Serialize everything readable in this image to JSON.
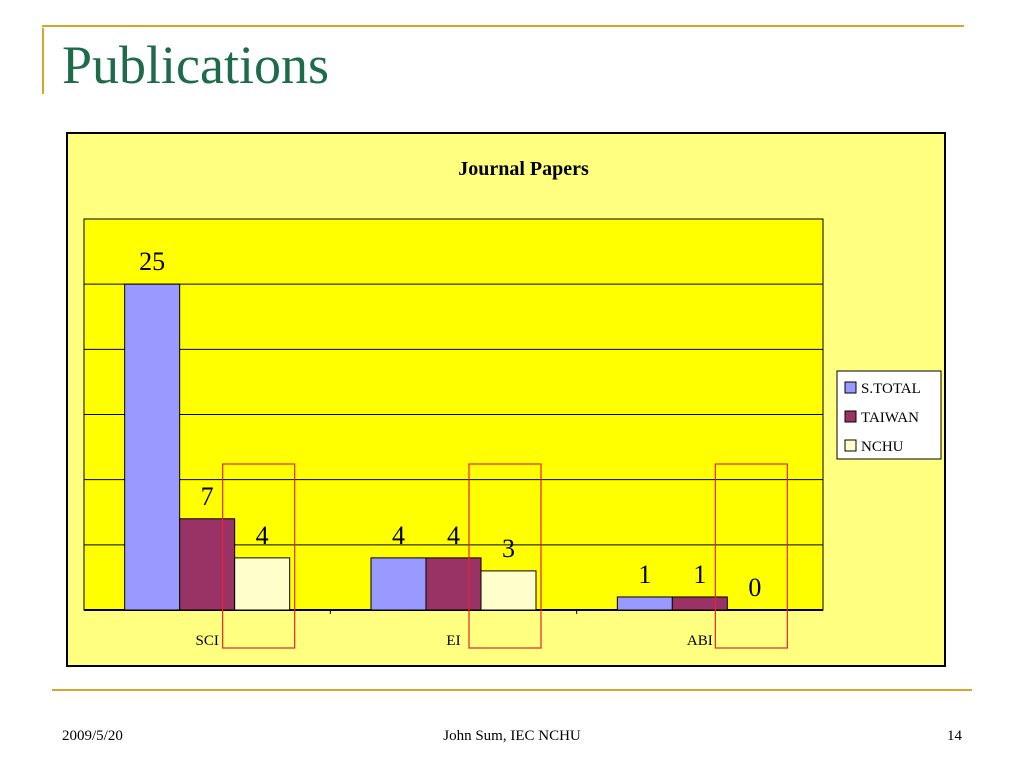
{
  "slide": {
    "title": "Publications",
    "footer_date": "2009/5/20",
    "footer_author": "John Sum, IEC NCHU",
    "page_number": "14"
  },
  "colors": {
    "accent_line": "#d4a72c",
    "title_text": "#1d6b4a",
    "chart_area_bg": "#ffff80",
    "plot_area_bg": "#ffff00",
    "highlight_box": "#e8232a"
  },
  "chart_data": {
    "type": "bar",
    "title": "Journal Papers",
    "categories": [
      "SCI",
      "EI",
      "ABI"
    ],
    "series": [
      {
        "name": "S.TOTAL",
        "values": [
          25,
          4,
          1
        ],
        "color": "#9999ff"
      },
      {
        "name": "TAIWAN",
        "values": [
          7,
          4,
          1
        ],
        "color": "#993366"
      },
      {
        "name": "NCHU",
        "values": [
          4,
          3,
          0
        ],
        "color": "#ffffcc"
      }
    ],
    "data_labels": true,
    "ylim": [
      0,
      30
    ],
    "y_gridline_step": 5,
    "y_tick_labels_shown": false,
    "grid": true,
    "legend": "right",
    "annotations": [
      "red outline boxes around the NCHU bar of each category"
    ]
  }
}
